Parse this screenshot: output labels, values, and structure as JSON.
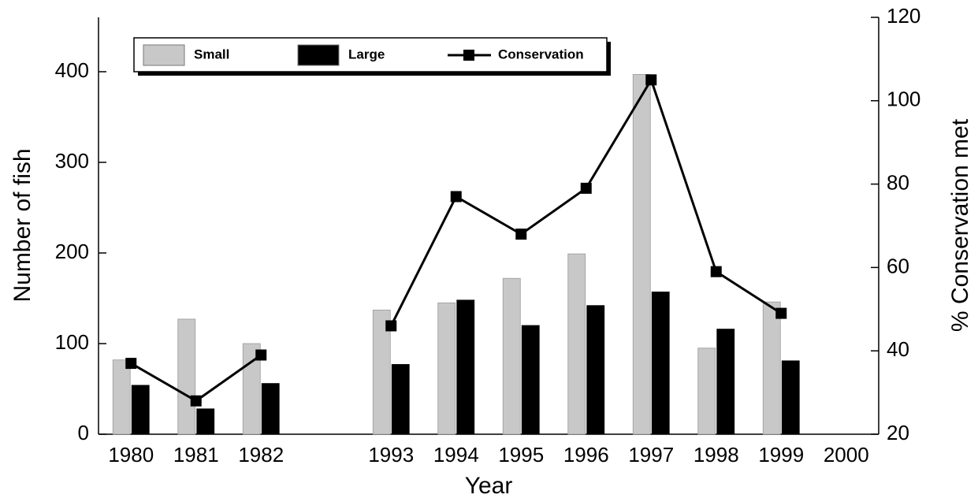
{
  "chart_data": {
    "type": "bar",
    "categories": [
      "1980",
      "1981",
      "1982",
      null,
      "1993",
      "1994",
      "1995",
      "1996",
      "1997",
      "1998",
      "1999",
      "2000"
    ],
    "series": [
      {
        "name": "Small",
        "color": "#c8c8c8",
        "type": "bar",
        "values": [
          82,
          127,
          100,
          null,
          137,
          145,
          172,
          199,
          397,
          95,
          146,
          null
        ]
      },
      {
        "name": "Large",
        "color": "#000000",
        "type": "bar",
        "values": [
          54,
          28,
          56,
          null,
          77,
          148,
          120,
          142,
          157,
          116,
          81,
          null
        ]
      },
      {
        "name": "Conservation",
        "color": "#000000",
        "type": "line",
        "axis": "y2",
        "values": [
          37,
          28,
          39,
          null,
          46,
          77,
          68,
          79,
          105,
          59,
          49,
          null
        ]
      }
    ],
    "x_label": "Year",
    "y_label": "Number of fish",
    "y2_label": "% Conservation met",
    "ylim": [
      0,
      460
    ],
    "yticks": [
      0,
      100,
      200,
      300,
      400
    ],
    "y2lim": [
      20,
      120
    ],
    "y2ticks": [
      20,
      40,
      60,
      80,
      100,
      120
    ]
  }
}
